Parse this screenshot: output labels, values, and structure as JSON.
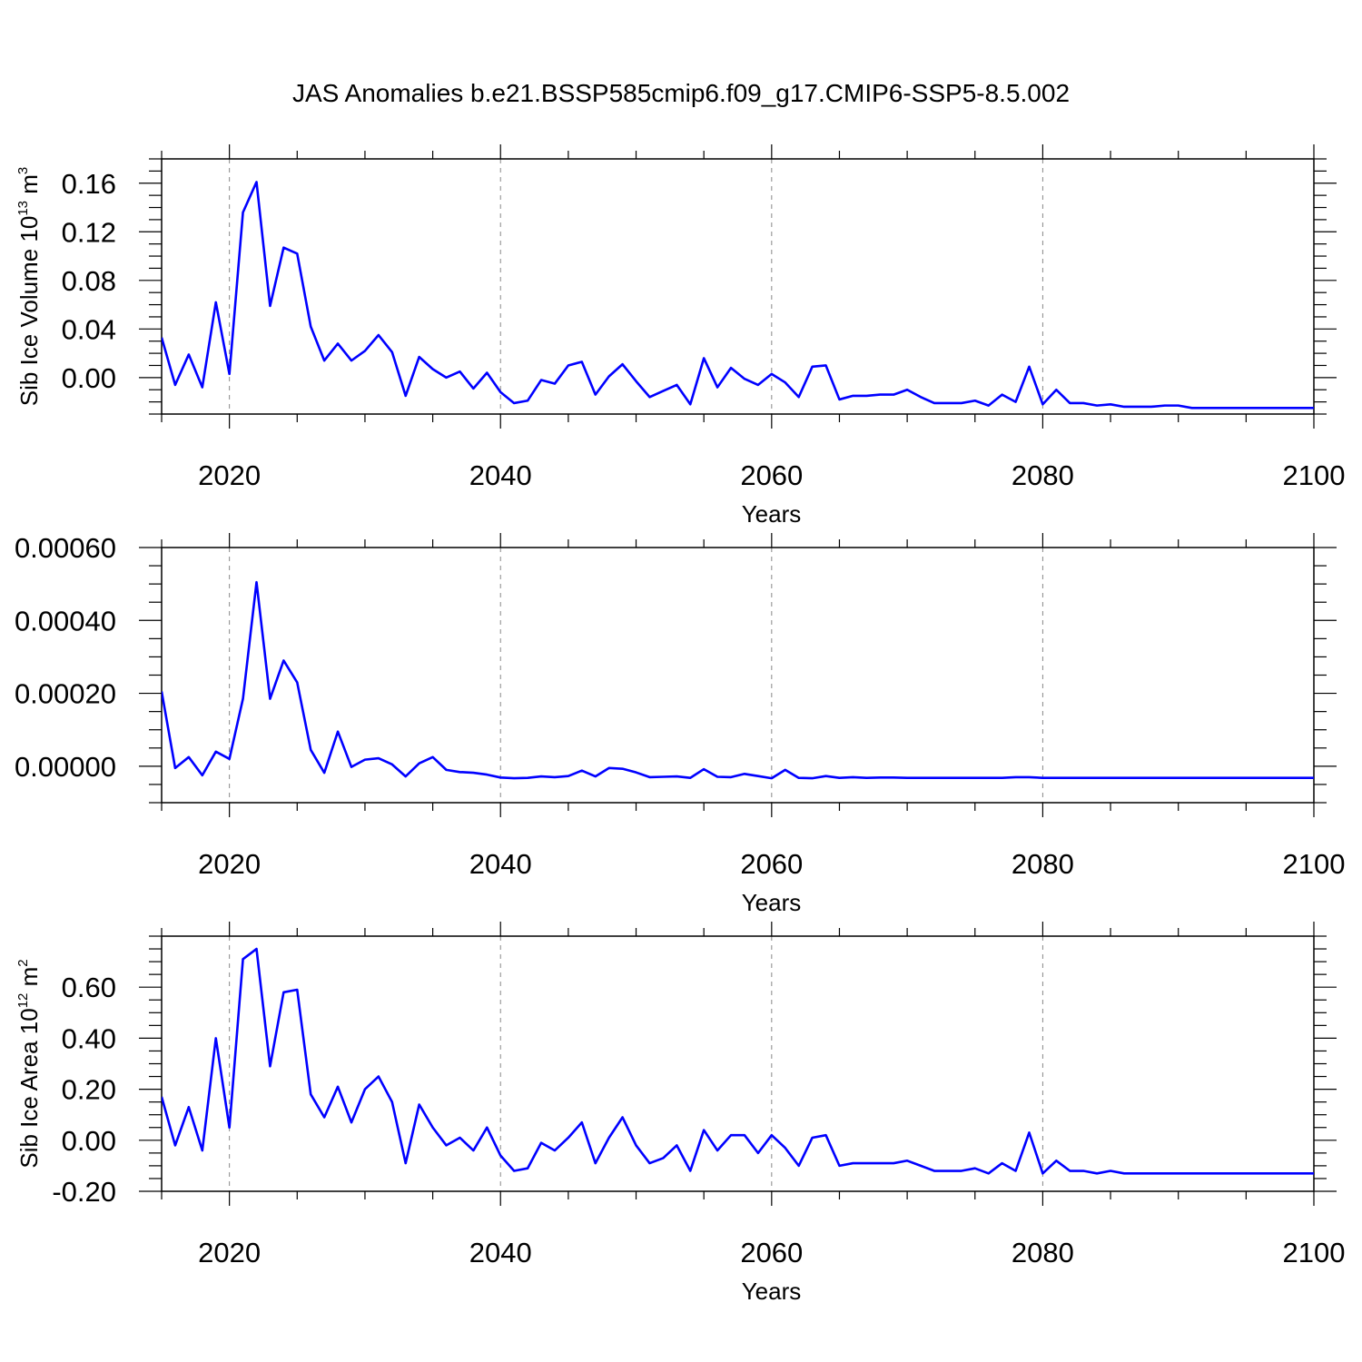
{
  "figure": {
    "title": "JAS Anomalies b.e21.BSSP585cmip6.f09_g17.CMIP6-SSP5-8.5.002",
    "line_color": "#0000ff",
    "grid_color": "#888888"
  },
  "chart_data": [
    {
      "type": "line",
      "xlabel": "Years",
      "ylabel": {
        "base": "Sib Ice Volume 10",
        "exp": "13",
        "unit": " m",
        "unit_exp": "3"
      },
      "xlim": [
        2015,
        2100
      ],
      "ylim": [
        -0.03,
        0.18
      ],
      "x_major_ticks": [
        2020,
        2040,
        2060,
        2080,
        2100
      ],
      "x_minor_step": 5,
      "y_major_ticks": [
        0.0,
        0.04,
        0.08,
        0.12,
        0.16
      ],
      "y_tick_labels": [
        "0.00",
        "0.04",
        "0.08",
        "0.12",
        "0.16"
      ],
      "y_minor_step": 0.01,
      "grid": "vertical-dashed",
      "x_start": 2015,
      "values": [
        0.033,
        -0.006,
        0.019,
        -0.008,
        0.062,
        0.003,
        0.136,
        0.161,
        0.059,
        0.107,
        0.102,
        0.042,
        0.014,
        0.028,
        0.014,
        0.022,
        0.035,
        0.021,
        -0.015,
        0.017,
        0.007,
        0.0,
        0.005,
        -0.009,
        0.004,
        -0.012,
        -0.021,
        -0.019,
        -0.002,
        -0.005,
        0.01,
        0.013,
        -0.014,
        0.001,
        0.011,
        -0.003,
        -0.016,
        -0.011,
        -0.006,
        -0.022,
        0.016,
        -0.008,
        0.008,
        -0.001,
        -0.006,
        0.003,
        -0.004,
        -0.016,
        0.009,
        0.01,
        -0.018,
        -0.015,
        -0.015,
        -0.014,
        -0.014,
        -0.01,
        -0.016,
        -0.021,
        -0.021,
        -0.021,
        -0.019,
        -0.023,
        -0.014,
        -0.02,
        0.009,
        -0.022,
        -0.01,
        -0.021,
        -0.021,
        -0.023,
        -0.022,
        -0.024,
        -0.024,
        -0.024,
        -0.023,
        -0.023,
        -0.025,
        -0.025,
        -0.025,
        -0.025,
        -0.025,
        -0.025,
        -0.025,
        -0.025,
        -0.025,
        -0.025
      ]
    },
    {
      "type": "line",
      "xlabel": "Years",
      "ylabel": null,
      "xlim": [
        2015,
        2100
      ],
      "ylim": [
        -0.0001,
        0.0006
      ],
      "x_major_ticks": [
        2020,
        2040,
        2060,
        2080,
        2100
      ],
      "x_minor_step": 5,
      "y_major_ticks": [
        0.0,
        0.0002,
        0.0004,
        0.0006
      ],
      "y_tick_labels": [
        "0.00000",
        "0.00020",
        "0.00040",
        "0.00060"
      ],
      "y_minor_step": 5e-05,
      "grid": "vertical-dashed",
      "x_start": 2015,
      "values": [
        0.000205,
        -5e-06,
        2.5e-05,
        -2.5e-05,
        4e-05,
        2e-05,
        0.000185,
        0.000505,
        0.000185,
        0.00029,
        0.00023,
        4.5e-05,
        -1.8e-05,
        9.5e-05,
        -2e-06,
        1.8e-05,
        2.2e-05,
        5e-06,
        -2.8e-05,
        8e-06,
        2.5e-05,
        -1e-05,
        -1.6e-05,
        -1.8e-05,
        -2.3e-05,
        -3.1e-05,
        -3.3e-05,
        -3.2e-05,
        -2.8e-05,
        -3e-05,
        -2.7e-05,
        -1.2e-05,
        -2.8e-05,
        -5e-06,
        -7e-06,
        -1.7e-05,
        -3e-05,
        -2.9e-05,
        -2.8e-05,
        -3.2e-05,
        -8e-06,
        -2.9e-05,
        -3e-05,
        -2.1e-05,
        -2.7e-05,
        -3.3e-05,
        -1e-05,
        -3.2e-05,
        -3.3e-05,
        -2.7e-05,
        -3.2e-05,
        -3e-05,
        -3.2e-05,
        -3.1e-05,
        -3.1e-05,
        -3.2e-05,
        -3.2e-05,
        -3.2e-05,
        -3.2e-05,
        -3.2e-05,
        -3.2e-05,
        -3.2e-05,
        -3.2e-05,
        -3e-05,
        -3e-05,
        -3.2e-05,
        -3.2e-05,
        -3.2e-05,
        -3.2e-05,
        -3.2e-05,
        -3.2e-05,
        -3.2e-05,
        -3.2e-05,
        -3.2e-05,
        -3.2e-05,
        -3.2e-05,
        -3.2e-05,
        -3.2e-05,
        -3.2e-05,
        -3.2e-05,
        -3.2e-05,
        -3.2e-05,
        -3.2e-05,
        -3.2e-05,
        -3.2e-05,
        -3.2e-05
      ]
    },
    {
      "type": "line",
      "xlabel": "Years",
      "ylabel": {
        "base": "Sib Ice Area 10",
        "exp": "12",
        "unit": " m",
        "unit_exp": "2"
      },
      "xlim": [
        2015,
        2100
      ],
      "ylim": [
        -0.2,
        0.8
      ],
      "x_major_ticks": [
        2020,
        2040,
        2060,
        2080,
        2100
      ],
      "x_minor_step": 5,
      "y_major_ticks": [
        -0.2,
        0.0,
        0.2,
        0.4,
        0.6
      ],
      "y_tick_labels": [
        "-0.20",
        "0.00",
        "0.20",
        "0.40",
        "0.60"
      ],
      "y_minor_step": 0.05,
      "grid": "vertical-dashed",
      "x_start": 2015,
      "values": [
        0.17,
        -0.02,
        0.13,
        -0.04,
        0.4,
        0.05,
        0.71,
        0.75,
        0.29,
        0.58,
        0.59,
        0.18,
        0.09,
        0.21,
        0.07,
        0.2,
        0.25,
        0.15,
        -0.09,
        0.14,
        0.05,
        -0.02,
        0.01,
        -0.04,
        0.05,
        -0.06,
        -0.12,
        -0.11,
        -0.01,
        -0.04,
        0.01,
        0.07,
        -0.09,
        0.01,
        0.09,
        -0.02,
        -0.09,
        -0.07,
        -0.02,
        -0.12,
        0.04,
        -0.04,
        0.02,
        0.02,
        -0.05,
        0.02,
        -0.03,
        -0.1,
        0.01,
        0.02,
        -0.1,
        -0.09,
        -0.09,
        -0.09,
        -0.09,
        -0.08,
        -0.1,
        -0.12,
        -0.12,
        -0.12,
        -0.11,
        -0.13,
        -0.09,
        -0.12,
        0.03,
        -0.13,
        -0.08,
        -0.12,
        -0.12,
        -0.13,
        -0.12,
        -0.13,
        -0.13,
        -0.13,
        -0.13,
        -0.13,
        -0.13,
        -0.13,
        -0.13,
        -0.13,
        -0.13,
        -0.13,
        -0.13,
        -0.13,
        -0.13,
        -0.13
      ]
    }
  ]
}
